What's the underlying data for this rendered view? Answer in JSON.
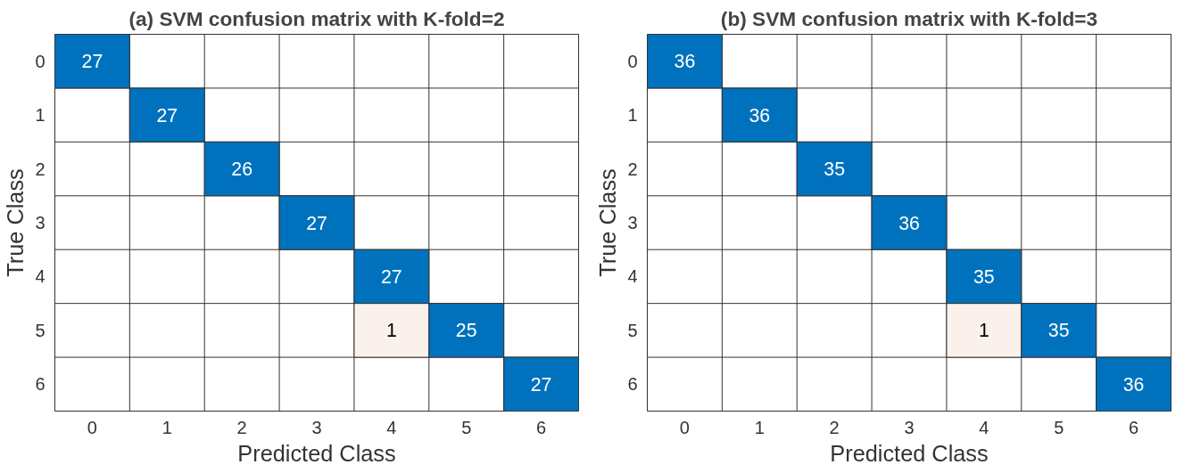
{
  "chart_data": [
    {
      "type": "heatmap",
      "data_labels": true,
      "title": "(a) SVM confusion matrix with K-fold=2",
      "xlabel": "Predicted Class",
      "ylabel": "True Class",
      "categories": [
        "0",
        "1",
        "2",
        "3",
        "4",
        "5",
        "6"
      ],
      "y_categories": [
        "0",
        "1",
        "2",
        "3",
        "4",
        "5",
        "6"
      ],
      "cells": [
        [
          27,
          null,
          null,
          null,
          null,
          null,
          null
        ],
        [
          null,
          27,
          null,
          null,
          null,
          null,
          null
        ],
        [
          null,
          null,
          26,
          null,
          null,
          null,
          null
        ],
        [
          null,
          null,
          null,
          27,
          null,
          null,
          null
        ],
        [
          null,
          null,
          null,
          null,
          27,
          null,
          null
        ],
        [
          null,
          null,
          null,
          null,
          1,
          25,
          null
        ],
        [
          null,
          null,
          null,
          null,
          null,
          null,
          27
        ]
      ]
    },
    {
      "type": "heatmap",
      "data_labels": true,
      "title": "(b) SVM confusion matrix with K-fold=3",
      "xlabel": "Predicted Class",
      "ylabel": "True Class",
      "categories": [
        "0",
        "1",
        "2",
        "3",
        "4",
        "5",
        "6"
      ],
      "y_categories": [
        "0",
        "1",
        "2",
        "3",
        "4",
        "5",
        "6"
      ],
      "cells": [
        [
          36,
          null,
          null,
          null,
          null,
          null,
          null
        ],
        [
          null,
          36,
          null,
          null,
          null,
          null,
          null
        ],
        [
          null,
          null,
          35,
          null,
          null,
          null,
          null
        ],
        [
          null,
          null,
          null,
          36,
          null,
          null,
          null
        ],
        [
          null,
          null,
          null,
          null,
          35,
          null,
          null
        ],
        [
          null,
          null,
          null,
          null,
          1,
          35,
          null
        ],
        [
          null,
          null,
          null,
          null,
          null,
          null,
          36
        ]
      ]
    }
  ]
}
